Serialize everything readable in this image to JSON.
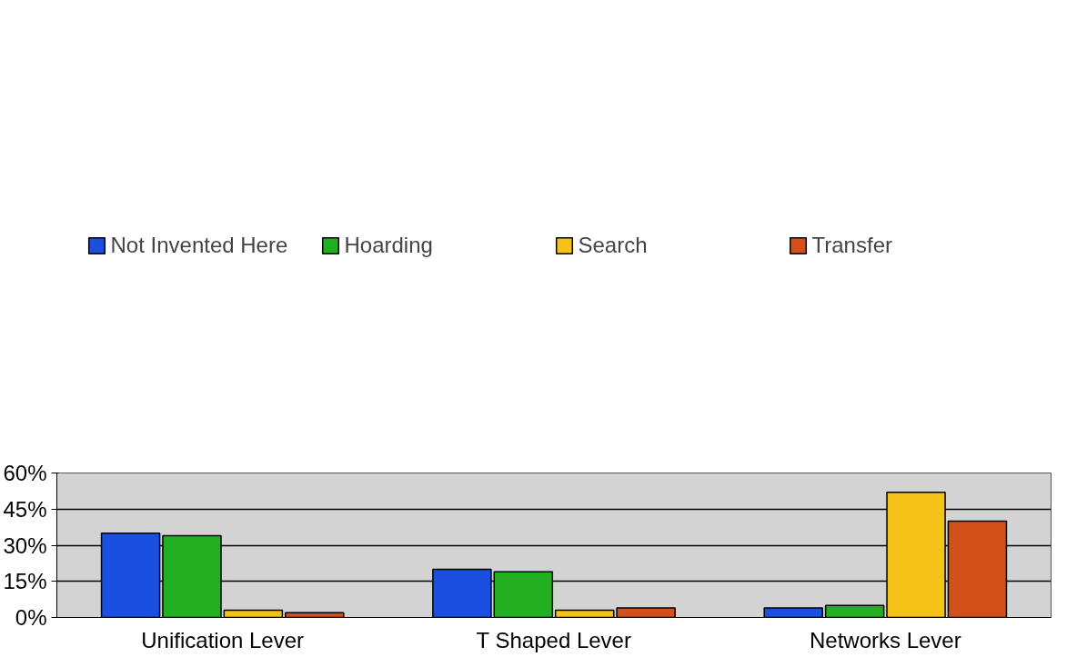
{
  "chart_data": {
    "type": "bar",
    "categories": [
      "Unification Lever",
      "T Shaped Lever",
      "Networks Lever"
    ],
    "series": [
      {
        "name": "Not Invented Here",
        "color": "#1a4fe0",
        "values": [
          35,
          20,
          4
        ]
      },
      {
        "name": "Hoarding",
        "color": "#22b022",
        "values": [
          34,
          19,
          5
        ]
      },
      {
        "name": "Search",
        "color": "#f5c21a",
        "values": [
          3,
          3,
          52
        ]
      },
      {
        "name": "Transfer",
        "color": "#d2501a",
        "values": [
          2,
          4,
          40
        ]
      }
    ],
    "ylim": [
      0,
      60
    ],
    "yticks": [
      {
        "value": 0,
        "label": "0%"
      },
      {
        "value": 15,
        "label": "15%"
      },
      {
        "value": 30,
        "label": "30%"
      },
      {
        "value": 45,
        "label": "45%"
      },
      {
        "value": 60,
        "label": "60%"
      }
    ],
    "grid": "y",
    "legend": "top"
  }
}
